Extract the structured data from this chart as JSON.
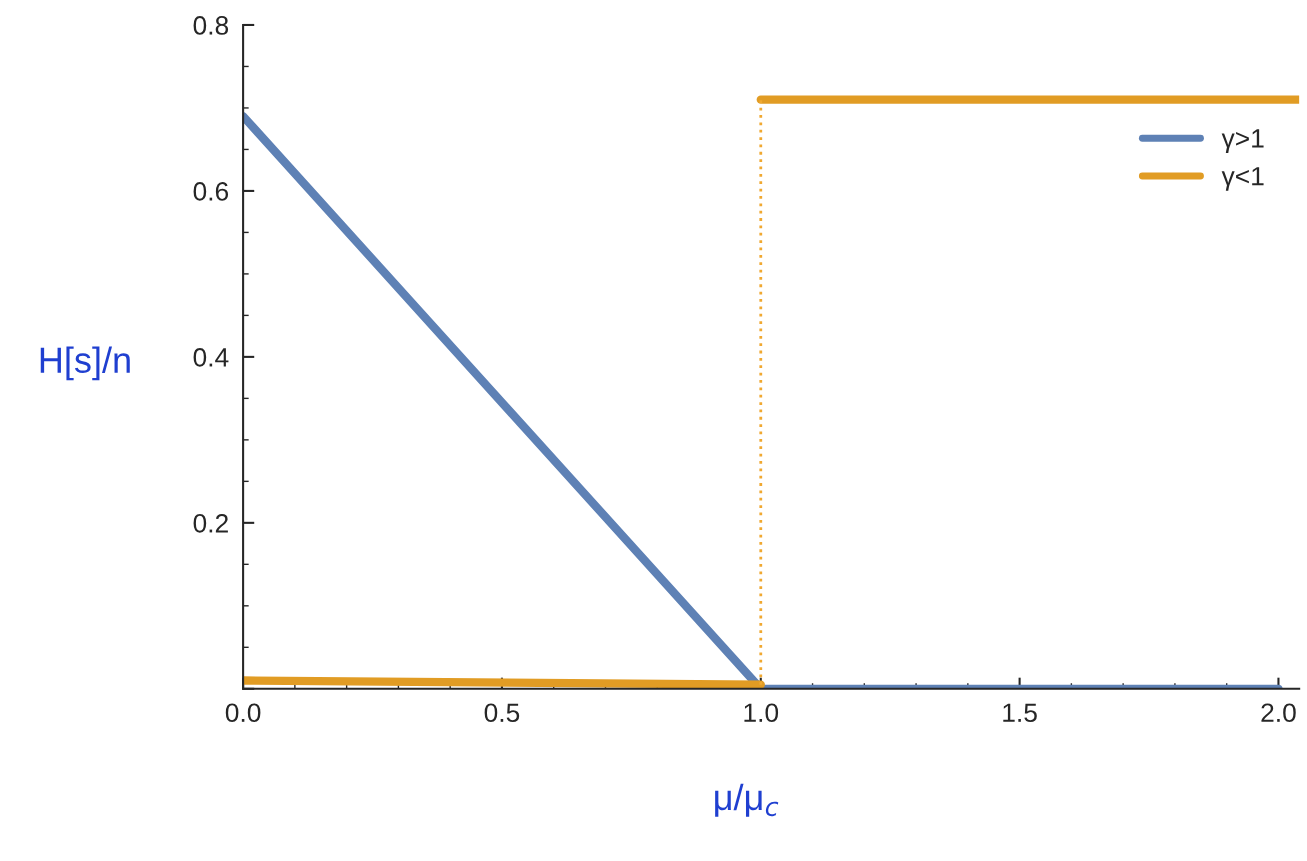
{
  "chart_data": {
    "type": "line",
    "xlabel": "μ/μ$_{c}$",
    "ylabel": "H[s]/n",
    "series": [
      {
        "name": "γ>1",
        "color": "#5e81b5",
        "x": [
          0,
          1,
          2.0
        ],
        "values": [
          0.69,
          0,
          0
        ]
      },
      {
        "name": "γ<1",
        "color": "#e19c24",
        "x": [
          0,
          1
        ],
        "values": [
          0.01,
          0.005
        ]
      },
      {
        "color": "#e19c24",
        "x": [
          1,
          2.04
        ],
        "values": [
          0.71,
          0.71
        ]
      },
      {
        "color": "#f0a830",
        "x": [
          1,
          1
        ],
        "values": [
          0.005,
          0.71
        ],
        "line_style": "dotted"
      }
    ],
    "xlim": [
      0,
      2.04
    ],
    "ylim": [
      0,
      0.8
    ],
    "xticks": [
      {
        "value": 0,
        "label": "0.0"
      },
      0.5,
      {
        "value": 1,
        "label": "1.0"
      },
      1.5,
      {
        "value": 2,
        "label": "2.0"
      }
    ],
    "yticks": [
      {
        "value": 0,
        "label": null
      },
      0.2,
      0.4,
      0.6,
      0.8
    ],
    "legend": "top right",
    "grid": false,
    "marker": "none",
    "line_style": "solid"
  }
}
